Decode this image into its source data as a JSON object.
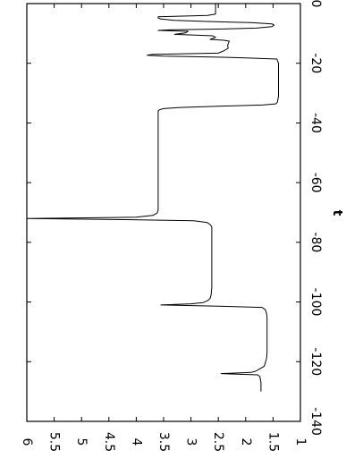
{
  "chart_data": {
    "type": "line",
    "orientation": "rotated-90",
    "xlabel": "t",
    "ylabel": "",
    "xlim": [
      -140,
      0
    ],
    "ylim": [
      1,
      6
    ],
    "x_ticks": [
      0,
      -20,
      -40,
      -60,
      -80,
      -100,
      -120,
      -140
    ],
    "x_tick_labels": [
      "0",
      "-20",
      "-40",
      "-60",
      "-80",
      "-100",
      "-120",
      "-140"
    ],
    "y_ticks": [
      6,
      5.5,
      5,
      4.5,
      4,
      3.5,
      3,
      2.5,
      2,
      1.5,
      1
    ],
    "y_tick_labels": [
      "6",
      "5.5",
      "5",
      "4.5",
      "4",
      "3.5",
      "3",
      "2.5",
      "2",
      "1.5",
      "1"
    ],
    "grid": false,
    "line_color": "#000000",
    "series": [
      {
        "x": [
          -130,
          -127,
          -125,
          -124.4,
          -124.0,
          -123.6,
          -123.2,
          -122.5,
          -121.5,
          -119,
          -117,
          -110,
          -105,
          -103.8,
          -102.6,
          -101.8,
          -101.4,
          -101.0,
          -100.6,
          -100.2,
          -99.6,
          -98.8,
          -97.5,
          -95,
          -90,
          -85,
          -80,
          -76,
          -75,
          -74.2,
          -73.4,
          -72.8,
          -72.4,
          -72.0,
          -71.6,
          -71.0,
          -70.2,
          -69.2,
          -68,
          -66,
          -62,
          -55,
          -48,
          -42,
          -38,
          -36,
          -35.6,
          -35.2,
          -34.8,
          -34.4,
          -34.0,
          -33.6,
          -33.0,
          -31,
          -28,
          -25,
          -22,
          -20,
          -18.6,
          -18.2,
          -17.9,
          -17.6,
          -17.3,
          -17.0,
          -16.6,
          -16.0,
          -15.0,
          -14.0,
          -13.0,
          -12.6,
          -12.3,
          -12.0,
          -11.7,
          -11.3,
          -10.8,
          -10.3,
          -9.8,
          -9.3,
          -9.0,
          -8.8,
          -8.5,
          -8.2,
          -7.7,
          -7.2,
          -6.8,
          -6.4,
          -6.0,
          -5.6,
          -5.2,
          -4.8,
          -4.4,
          -4.0,
          -3.5,
          -2.5,
          -1.5,
          -0.7,
          0.0
        ],
        "y": [
          1.72,
          1.72,
          1.74,
          1.78,
          2.45,
          1.9,
          1.82,
          1.75,
          1.66,
          1.62,
          1.61,
          1.61,
          1.61,
          1.62,
          1.64,
          1.7,
          2.5,
          3.55,
          3.0,
          2.78,
          2.7,
          2.65,
          2.63,
          2.62,
          2.62,
          2.62,
          2.62,
          2.62,
          2.62,
          2.64,
          2.7,
          2.95,
          4.2,
          6.0,
          4.0,
          3.7,
          3.62,
          3.6,
          3.6,
          3.6,
          3.6,
          3.6,
          3.6,
          3.6,
          3.6,
          3.6,
          3.58,
          3.5,
          3.2,
          2.5,
          1.7,
          1.45,
          1.42,
          1.4,
          1.4,
          1.4,
          1.4,
          1.4,
          1.43,
          2.0,
          2.6,
          3.5,
          3.8,
          3.7,
          2.5,
          2.42,
          2.32,
          2.33,
          2.31,
          2.3,
          2.4,
          2.65,
          2.6,
          2.55,
          2.6,
          3.3,
          3.1,
          3.05,
          3.6,
          3.4,
          2.4,
          1.8,
          1.52,
          1.48,
          1.52,
          1.9,
          2.7,
          3.3,
          3.55,
          3.6,
          3.6,
          2.7,
          2.55,
          2.55,
          2.55,
          2.55,
          2.55
        ]
      }
    ]
  }
}
